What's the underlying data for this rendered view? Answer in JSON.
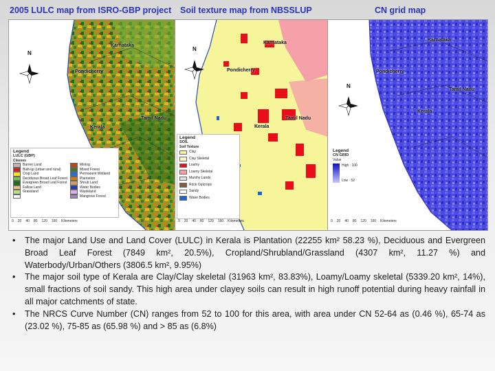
{
  "titles": {
    "lulc": "2005 LULC map from ISRO-GBP project",
    "soil": "Soil texture map from NBSSLUP",
    "cn": "CN grid map"
  },
  "places": {
    "karnataka": "Karnataka",
    "pondicherry": "Pondicherry",
    "tamil_nadu": "Tamil Nadu",
    "kerala": "Kerala"
  },
  "north": "N",
  "lulc_legend": {
    "title": "Legend",
    "subtitle": "LULC (GBP)",
    "classes_label": "Classes",
    "items": [
      {
        "label": "Barren Land",
        "color": "#b9b9b9"
      },
      {
        "label": "Mining",
        "color": "#b44a1a"
      },
      {
        "label": "Built-up (urban and rural)",
        "color": "#e8141a"
      },
      {
        "label": "Mixed Forest",
        "color": "#3b7d2a"
      },
      {
        "label": "Crop Land",
        "color": "#f2e61a"
      },
      {
        "label": "Permanent Wetland",
        "color": "#2a6cd8"
      },
      {
        "label": "Deciduous Broad Leaf Forest",
        "color": "#7ac243"
      },
      {
        "label": "Plantation",
        "color": "#d27a1e"
      },
      {
        "label": "Evergreen Broad Leaf Forest",
        "color": "#1e6b1a"
      },
      {
        "label": "Shrub Land",
        "color": "#c9a06a"
      },
      {
        "label": "Fallow Land",
        "color": "#f0c080"
      },
      {
        "label": "Water Bodies",
        "color": "#1a3ab8"
      },
      {
        "label": "Grassland",
        "color": "#b8e08a"
      },
      {
        "label": "Wasteland",
        "color": "#e0b0e0"
      },
      {
        "label": "",
        "color": "#ffffff"
      },
      {
        "label": "Mangrove Forest",
        "color": "#a080c0"
      }
    ]
  },
  "soil_legend": {
    "title": "Legend",
    "subtitle": "SOIL",
    "classes_label": "Soil Texture",
    "items": [
      {
        "label": "Clay",
        "color": "#f7f59a"
      },
      {
        "label": "Clay Skeletal",
        "color": "#fbf7c4"
      },
      {
        "label": "Loamy",
        "color": "#e80f1a"
      },
      {
        "label": "Loamy Skeletal",
        "color": "#f5a0a8"
      },
      {
        "label": "Marshy Lands",
        "color": "#e0e0e0"
      },
      {
        "label": "Rock Outcrops",
        "color": "#8a5a3a"
      },
      {
        "label": "Sandy",
        "color": "#ffffff"
      },
      {
        "label": "Water Bodies",
        "color": "#2060d8"
      }
    ]
  },
  "cn_legend": {
    "title": "Legend",
    "subtitle": "CN GRID",
    "value_label": "Value",
    "high": "High : 100",
    "low": "Low : 52"
  },
  "scales": {
    "lulc": [
      "0",
      "20",
      "40",
      "80",
      "120",
      "160",
      "Kilometers"
    ],
    "soil": [
      "0",
      "20",
      "40",
      "80",
      "120",
      "160",
      "Kilometers"
    ],
    "cn": [
      "0",
      "20",
      "40",
      "80",
      "120",
      "160",
      "Kilometers"
    ]
  },
  "bullets": [
    "The major Land Use and Land Cover (LULC) in Kerala is Plantation (22255 km² 58.23 %), Deciduous and Evergreen Broad Leaf Forest (7849 km², 20.5%), Cropland/Shrubland/Grassland (4307 km², 11.27 %) and Waterbody/Urban/Others (3806.5 km², 9.95%)",
    "The major soil type of Kerala are Clay/Clay skeletal (31963 km², 83.83%), Loamy/Loamy skeletal (5339.20 km², 14%), small fractions of soil sandy. This high area under clayey soils can result in high runoff potential during heavy rainfall in all major catchments of state.",
    "The NRCS Curve Number (CN) ranges from 52 to 100 for this area, with area under CN 52-64 as (0.46 %), 65-74 as (23.02 %), 75-85 as (65.98 %) and > 85 as (6.8%)"
  ],
  "bullet_symbol": "•"
}
